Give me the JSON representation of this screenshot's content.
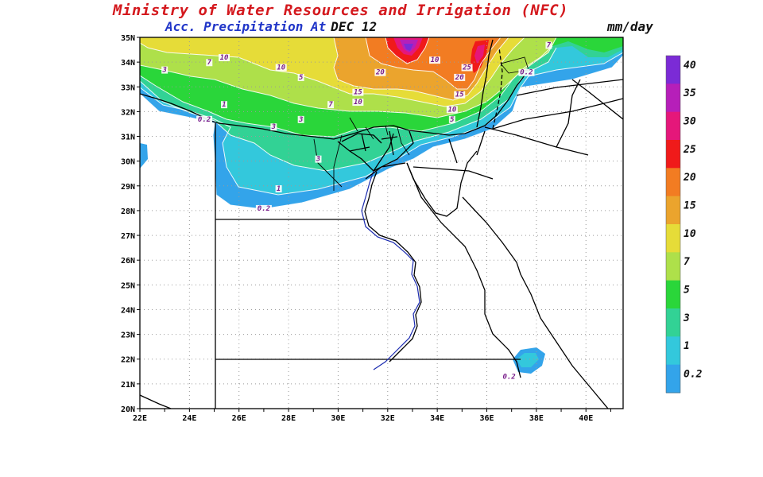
{
  "header": {
    "title": "Ministry of Water Resources and Irrigation (NFC)",
    "subtitle": "Acc. Precipitation  At",
    "date": "DEC 12",
    "units": "mm/day"
  },
  "map": {
    "lon_range": [
      22,
      41.5
    ],
    "lat_range": [
      20,
      35
    ],
    "lat_labels": [
      "35N",
      "34N",
      "33N",
      "32N",
      "31N",
      "30N",
      "29N",
      "28N",
      "27N",
      "26N",
      "25N",
      "24N",
      "23N",
      "22N",
      "21N",
      "20N"
    ],
    "lon_labels": [
      "22E",
      "24E",
      "26E",
      "28E",
      "30E",
      "32E",
      "34E",
      "36E",
      "38E",
      "40E"
    ],
    "contour_labels": [
      {
        "text": "10",
        "lon": 25.4,
        "lat": 34.1
      },
      {
        "text": "7",
        "lon": 24.8,
        "lat": 33.9
      },
      {
        "text": "3",
        "lon": 23.0,
        "lat": 33.6
      },
      {
        "text": "10",
        "lon": 27.7,
        "lat": 33.7
      },
      {
        "text": "5",
        "lon": 28.5,
        "lat": 33.3
      },
      {
        "text": "1",
        "lon": 25.4,
        "lat": 32.2
      },
      {
        "text": "0.2",
        "lon": 24.6,
        "lat": 31.6
      },
      {
        "text": "3",
        "lon": 28.5,
        "lat": 31.6
      },
      {
        "text": "3",
        "lon": 27.4,
        "lat": 31.3
      },
      {
        "text": "7",
        "lon": 29.7,
        "lat": 32.2
      },
      {
        "text": "15",
        "lon": 30.8,
        "lat": 32.7
      },
      {
        "text": "10",
        "lon": 30.8,
        "lat": 32.3
      },
      {
        "text": "20",
        "lon": 31.7,
        "lat": 33.5
      },
      {
        "text": "10",
        "lon": 33.9,
        "lat": 34.0
      },
      {
        "text": "25",
        "lon": 35.2,
        "lat": 33.7
      },
      {
        "text": "20",
        "lon": 34.9,
        "lat": 33.3
      },
      {
        "text": "15",
        "lon": 34.9,
        "lat": 32.6
      },
      {
        "text": "10",
        "lon": 34.6,
        "lat": 32.0
      },
      {
        "text": "5",
        "lon": 34.6,
        "lat": 31.6
      },
      {
        "text": "0.2",
        "lon": 37.6,
        "lat": 33.5
      },
      {
        "text": "7",
        "lon": 38.5,
        "lat": 34.6
      },
      {
        "text": "3",
        "lon": 29.2,
        "lat": 30.0
      },
      {
        "text": "1",
        "lon": 27.6,
        "lat": 28.8
      },
      {
        "text": "0.2",
        "lon": 27.0,
        "lat": 28.0
      },
      {
        "text": "0.2",
        "lon": 36.9,
        "lat": 21.2
      }
    ]
  },
  "legend": {
    "levels": [
      "40",
      "35",
      "30",
      "25",
      "20",
      "15",
      "10",
      "7",
      "5",
      "3",
      "1",
      "0.2"
    ],
    "colors": [
      "#7b2bd6",
      "#b61fb9",
      "#e5177a",
      "#f01a1a",
      "#f27c22",
      "#eba42d",
      "#e6dc38",
      "#aee04a",
      "#2ad63a",
      "#32d295",
      "#33c8dc",
      "#33a4ea"
    ]
  },
  "fill_colors": {
    "c02": "#33a4ea",
    "c1": "#33c8dc",
    "c3": "#32d295",
    "c5": "#2ad63a",
    "c7": "#aee04a",
    "c10": "#e6dc38",
    "c15": "#eba42d",
    "c20": "#f27c22",
    "c25": "#f01a1a",
    "c30": "#e5177a",
    "c35": "#b61fb9",
    "c40": "#7b2bd6"
  }
}
